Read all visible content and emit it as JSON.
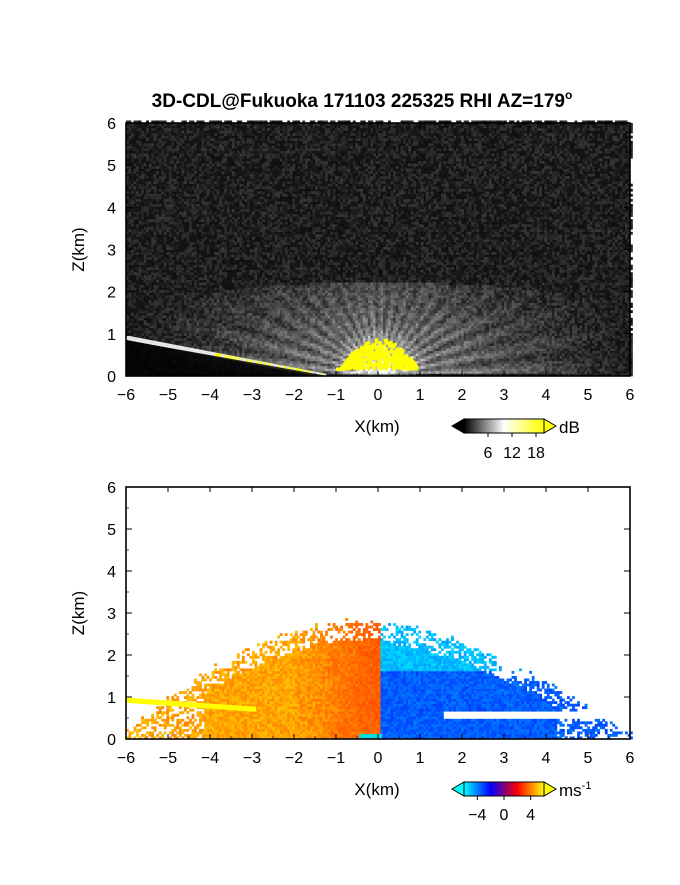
{
  "figure": {
    "title": "3D-CDL@Fukuoka 171103 225325 RHI AZ=179",
    "title_sup": "o"
  },
  "chart_data": [
    {
      "type": "heatmap",
      "quantity": "backscatter intensity",
      "xlabel": "X(km)",
      "ylabel": "Z(km)",
      "xlim": [
        -6,
        6
      ],
      "ylim": [
        0,
        6
      ],
      "xticks": [
        -6,
        -5,
        -4,
        -3,
        -2,
        -1,
        0,
        1,
        2,
        3,
        4,
        5,
        6
      ],
      "yticks": [
        0,
        1,
        2,
        3,
        4,
        5,
        6
      ],
      "colorbar": {
        "unit": "dB",
        "ticks": [
          6,
          12,
          18
        ],
        "range": [
          0,
          20
        ],
        "colors": [
          "#000000",
          "#ffffff",
          "#ffff00"
        ]
      },
      "features": {
        "aerosol_layer_top_km": 2.2,
        "saturated_core": {
          "x_range": [
            -1.0,
            0.9
          ],
          "z_range": [
            0.2,
            0.9
          ]
        },
        "ground_clutter_line": {
          "from": [
            -6.0,
            0.9
          ],
          "to": [
            -1.3,
            0.0
          ]
        }
      }
    },
    {
      "type": "heatmap",
      "quantity": "radial velocity",
      "xlabel": "X(km)",
      "ylabel": "Z(km)",
      "xlim": [
        -6,
        6
      ],
      "ylim": [
        0,
        6
      ],
      "xticks": [
        -6,
        -5,
        -4,
        -3,
        -2,
        -1,
        0,
        1,
        2,
        3,
        4,
        5,
        6
      ],
      "yticks": [
        0,
        1,
        2,
        3,
        4,
        5,
        6
      ],
      "colorbar": {
        "unit": "ms",
        "unit_sup": "-1",
        "ticks": [
          "−4",
          "0",
          "4"
        ],
        "tick_values": [
          -4,
          0,
          4
        ],
        "range": [
          -6,
          6
        ],
        "colors": [
          "#00ffff",
          "#0000ff",
          "#ff0000",
          "#ffff00"
        ]
      },
      "features": {
        "data_top_km": 2.6,
        "negative_side_velocity": 4,
        "positive_side_velocity": -3,
        "right_extent_km": 5.6
      }
    }
  ]
}
